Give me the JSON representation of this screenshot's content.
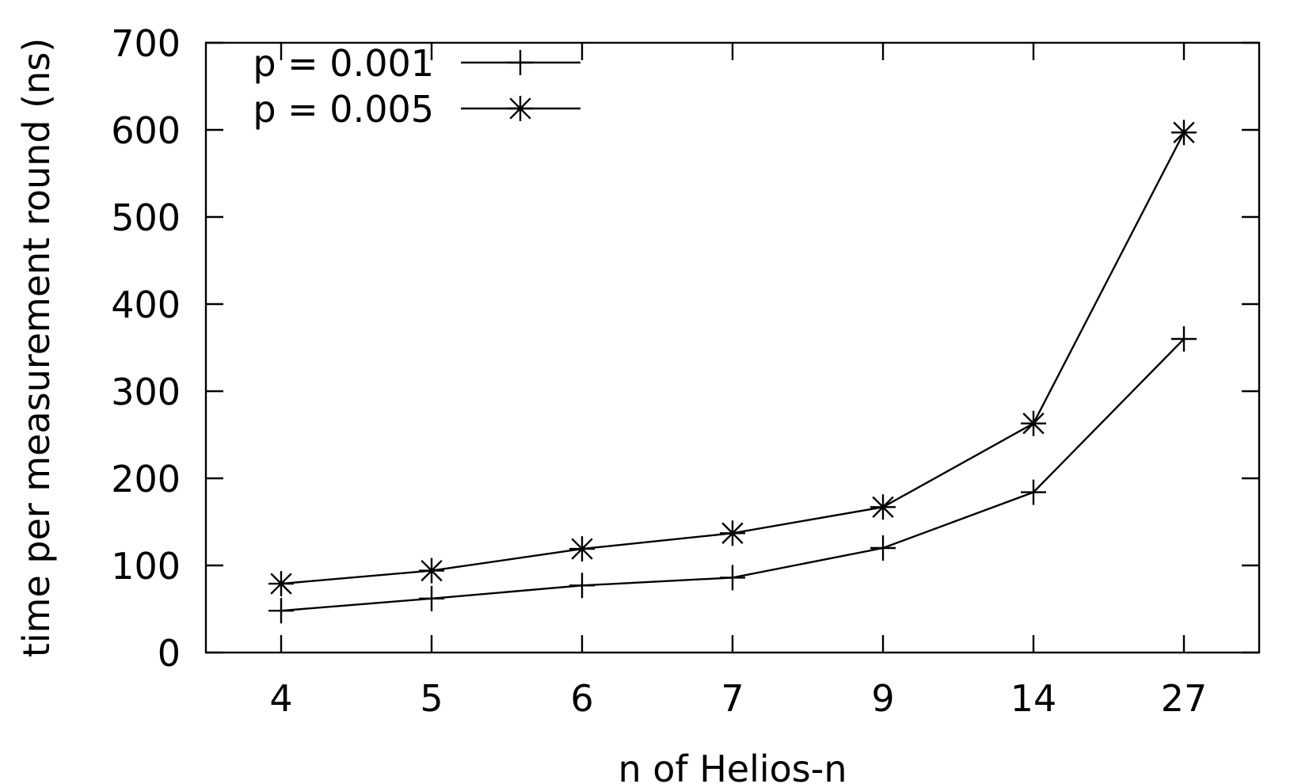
{
  "chart_data": {
    "type": "line",
    "title": "",
    "xlabel": "n of Helios-n",
    "ylabel": "time per measurement round (ns)",
    "categories": [
      "4",
      "5",
      "6",
      "7",
      "9",
      "14",
      "27"
    ],
    "ylim": [
      0,
      700
    ],
    "yticks": [
      0,
      100,
      200,
      300,
      400,
      500,
      600,
      700
    ],
    "grid": false,
    "legend_position": "top-left",
    "series": [
      {
        "name": "p = 0.001",
        "marker": "plus",
        "values": [
          48,
          62,
          77,
          86,
          120,
          184,
          360
        ]
      },
      {
        "name": "p = 0.005",
        "marker": "asterisk",
        "values": [
          79,
          94,
          119,
          137,
          167,
          263,
          597
        ]
      }
    ]
  }
}
